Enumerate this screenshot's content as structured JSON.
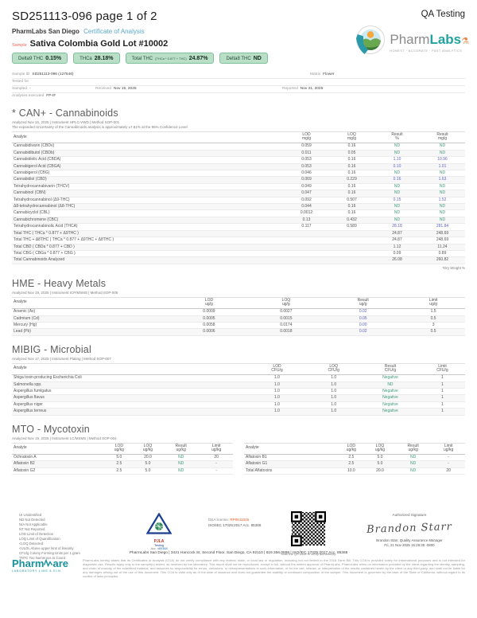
{
  "colors": {
    "accent_teal": "#58a9c9",
    "accent_orange": "#e8695a",
    "badge_bg": "#b9dfc7",
    "badge_border": "#7fc09c",
    "result_blue": "#5f63c8",
    "result_green": "#3f9b78"
  },
  "header": {
    "title": "SD251113-096 page 1 of 2",
    "right": "QA Testing"
  },
  "brand": {
    "lab_name": "PharmLabs San Diego",
    "doc_type": "Certificate of Analysis"
  },
  "sample": {
    "label": "Sample",
    "name": "Sativa Colombia Gold Lot #10002"
  },
  "badges": [
    {
      "label": "Delta9 THC",
      "value": "0.15%"
    },
    {
      "label": "THCa",
      "value": "28.18%"
    },
    {
      "label": "Total THC",
      "sub": "(THCa * 0.877 + THC)",
      "value": "24.87%"
    },
    {
      "label": "Delta8 THC",
      "value": "ND"
    }
  ],
  "logo": {
    "word1": "Pharm",
    "word2": "Labs",
    "flask": "⚗",
    "tagline": "HONEST · ACCURATE · FAST ANALYTICS"
  },
  "info": {
    "sample_id_label": "Sample ID",
    "sample_id": "SD251113-096 (127646)",
    "matrix_label": "Matrix",
    "matrix": "Flower",
    "tested_for_label": "Tested for",
    "sampled_label": "Sampled",
    "sampled": "-",
    "received_label": "Received",
    "received": "Nov 15, 2025",
    "reported_label": "Reported",
    "reported": "Nov 21, 2025",
    "analyses_label": "Analyses executed",
    "analyses": "FP-IF"
  },
  "sections": {
    "cannabinoids": {
      "title": "* CAN+ - Cannabinoids",
      "meta": "Analyzed Nov 15, 2025  |  Instrument HPLC-VWD  | Method SOP-001",
      "note": "The expanded Uncertainty of the Cannabinoids analysis is approximately ±7.81% at the 95% Confidence Level",
      "footnote": "*Dry Weight %"
    },
    "heavy_metals": {
      "title": "HME - Heavy Metals",
      "meta": "Analyzed Nov 19, 2025  |  Instrument ICP/MSMS  | Method SOP-005"
    },
    "microbial": {
      "title": "MIBIG - Microbial",
      "meta": "Analyzed Nov 17, 2025  |  Instrument Plating  | Method SOP-007"
    },
    "mycotoxin": {
      "title": "MTO - Mycotoxin",
      "meta": "Analyzed Nov 19, 2025  |  Instrument LC/MSMS  | Method SOP-004"
    }
  },
  "tables": {
    "cannabinoids": {
      "widths": [
        "60%",
        "10%",
        "10%",
        "10%",
        "10%"
      ],
      "blue": [
        3,
        4
      ],
      "headers": [
        {
          "l": "Analyte"
        },
        {
          "l": "LOD",
          "u": "mg/g"
        },
        {
          "l": "LOQ",
          "u": "mg/g"
        },
        {
          "l": "Result",
          "u": "%"
        },
        {
          "l": "Result",
          "u": "mg/g"
        }
      ],
      "rows": [
        {
          "c": [
            "Cannabidivarin (CBDv)",
            "0.059",
            "0.16",
            "ND",
            "ND"
          ]
        },
        {
          "c": [
            "Cannabidibutol (CBDb)",
            "0.011",
            "0.05",
            "ND",
            "ND"
          ]
        },
        {
          "c": [
            "Cannabidiolic Acid (CBDA)",
            "0.053",
            "0.16",
            "1.10",
            "10.96"
          ]
        },
        {
          "c": [
            "Cannabigerol Acid (CBGA)",
            "0.053",
            "0.16",
            "0.10",
            "1.01"
          ]
        },
        {
          "c": [
            "Cannabigerol (CBG)",
            "0.046",
            "0.16",
            "ND",
            "ND"
          ]
        },
        {
          "c": [
            "Cannabidiol (CBD)",
            "0.069",
            "0.229",
            "0.16",
            "1.63"
          ]
        },
        {
          "c": [
            "Tetrahydrocannabivarin (THCV)",
            "0.049",
            "0.16",
            "ND",
            "ND"
          ]
        },
        {
          "c": [
            "Cannabinol (CBN)",
            "0.047",
            "0.16",
            "ND",
            "ND"
          ]
        },
        {
          "c": [
            "Tetrahydrocannabinol (Δ9-THC)",
            "0.092",
            "0.507",
            "0.15",
            "1.52"
          ]
        },
        {
          "c": [
            "Δ8-tetrahydrocannabinol (Δ8-THC)",
            "0.044",
            "0.16",
            "ND",
            "ND"
          ]
        },
        {
          "c": [
            "Cannabicyclol (CBL)",
            "0.0012",
            "0.16",
            "ND",
            "ND"
          ]
        },
        {
          "c": [
            "Cannabichromene (CBC)",
            "0.13",
            "0.432",
            "ND",
            "ND"
          ]
        },
        {
          "c": [
            "Tetrahydrocannabinolic Acid (THCA)",
            "0.117",
            "0.589",
            "28.18",
            "281.84"
          ]
        },
        {
          "c": [
            "Total THC ( THCa * 0.877 + Δ9THC )",
            "",
            "",
            "24.87",
            "248.69"
          ],
          "plain": true,
          "sep": true
        },
        {
          "c": [
            "Total THC + Δ8THC ( THCa * 0.877 + Δ9THC + Δ8THC )",
            "",
            "",
            "24.87",
            "248.69"
          ],
          "plain": true
        },
        {
          "c": [
            "Total CBD ( CBDa * 0.877 + CBD )",
            "",
            "",
            "1.12",
            "11.24"
          ],
          "plain": true
        },
        {
          "c": [
            "Total CBG ( CBGa * 0.877 + CBG )",
            "",
            "",
            "0.09",
            "0.89"
          ],
          "plain": true
        },
        {
          "c": [
            "Total Cannabinoids Analyzed",
            "",
            "",
            "26.08",
            "260.82"
          ],
          "plain": true
        }
      ]
    },
    "heavy_metals": {
      "widths": [
        "35%",
        "17%",
        "17%",
        "17%",
        "14%"
      ],
      "blue": [
        3
      ],
      "headers": [
        {
          "l": "Analyte"
        },
        {
          "l": "LOD",
          "u": "ug/g"
        },
        {
          "l": "LOQ",
          "u": "ug/g"
        },
        {
          "l": "Result",
          "u": "ug/g"
        },
        {
          "l": "Limit",
          "u": "ug/g"
        }
      ],
      "rows": [
        {
          "c": [
            "Arsenic (As)",
            "0.0009",
            "0.0027",
            "0.02",
            "1.5"
          ]
        },
        {
          "c": [
            "Cadmium (Cd)",
            "0.0005",
            "0.0015",
            "0.05",
            "0.5"
          ]
        },
        {
          "c": [
            "Mercury (Hg)",
            "0.0058",
            "0.0174",
            "0.00",
            "3"
          ]
        },
        {
          "c": [
            "Lead (Pb)",
            "0.0006",
            "0.0018",
            "0.02",
            "0.5"
          ]
        }
      ]
    },
    "microbial": {
      "widths": [
        "52%",
        "13%",
        "12%",
        "13%",
        "10%"
      ],
      "blue": [],
      "headers": [
        {
          "l": "Analyte"
        },
        {
          "l": "LOD",
          "u": "CFU/g"
        },
        {
          "l": "LOQ",
          "u": "CFU/g"
        },
        {
          "l": "Result",
          "u": "CFU/g"
        },
        {
          "l": "Limit",
          "u": "CFU/g"
        }
      ],
      "rows": [
        {
          "c": [
            "Shiga toxin-producing Escherichia Coli",
            "1.0",
            "1.0",
            "Negative",
            "1"
          ]
        },
        {
          "c": [
            "Salmonella spp.",
            "1.0",
            "1.0",
            "ND",
            "1"
          ]
        },
        {
          "c": [
            "Aspergillus fumigatus",
            "1.0",
            "1.0",
            "Negative",
            "1"
          ]
        },
        {
          "c": [
            "Aspergillus flavus",
            "1.0",
            "1.0",
            "Negative",
            "1"
          ]
        },
        {
          "c": [
            "Aspergillus niger",
            "1.0",
            "1.0",
            "Negative",
            "1"
          ]
        },
        {
          "c": [
            "Aspergillus terreus",
            "1.0",
            "1.0",
            "Negative",
            "1"
          ]
        }
      ]
    },
    "mycotoxin_left": {
      "widths": [
        "42%",
        "13%",
        "13%",
        "17%",
        "15%"
      ],
      "blue": [],
      "headers": [
        {
          "l": "Analyte"
        },
        {
          "l": "LOD",
          "u": "ug/kg"
        },
        {
          "l": "LOQ",
          "u": "ug/kg"
        },
        {
          "l": "Result",
          "u": "ug/kg"
        },
        {
          "l": "Limit",
          "u": "ug/kg"
        }
      ],
      "rows": [
        {
          "c": [
            "Ochratoxin A",
            "5.0",
            "20.0",
            "ND",
            "20"
          ]
        },
        {
          "c": [
            "Aflatoxin B2",
            "2.5",
            "5.0",
            "ND",
            "-"
          ]
        },
        {
          "c": [
            "Aflatoxin G2",
            "2.5",
            "5.0",
            "ND",
            "-"
          ]
        }
      ]
    },
    "mycotoxin_right": {
      "widths": [
        "42%",
        "13%",
        "13%",
        "17%",
        "15%"
      ],
      "blue": [],
      "headers": [
        {
          "l": "Analyte"
        },
        {
          "l": "LOD",
          "u": "ug/kg"
        },
        {
          "l": "LOQ",
          "u": "ug/kg"
        },
        {
          "l": "Result",
          "u": "ug/kg"
        },
        {
          "l": "Limit",
          "u": "ug/kg"
        }
      ],
      "rows": [
        {
          "c": [
            "Aflatoxin B1",
            "2.5",
            "5.0",
            "ND",
            "-"
          ]
        },
        {
          "c": [
            "Aflatoxin G1",
            "2.5",
            "5.0",
            "ND",
            "-"
          ]
        },
        {
          "c": [
            "Total Aflatoxins",
            "10.0",
            "20.0",
            "ND",
            "20"
          ]
        }
      ]
    }
  },
  "footer": {
    "legend": [
      "UI Unidentified",
      "ND Not Detected",
      "N/A Not Applicable",
      "NT Not Reported",
      "LOD Limit of Detection",
      "LOQ Limit of Quantification",
      "<LOQ Detected",
      "<ULOL Above upper limit of linearity",
      "CFU/g Colony Forming Units per 1 gram",
      "TNTC Too Numerous to Count"
    ],
    "pjla": {
      "name": "PJLA",
      "sub": "Testing",
      "acc_label": "Acc. #",
      "acc_num": "85368"
    },
    "dea": {
      "label": "DEA license:",
      "value": "RP0611045"
    },
    "iso": "ISO/IEC 17025:2017 Acc. 85368",
    "qr_caption": "Scan the QR code to verify authenticity.",
    "signature": {
      "label": "Authorized Signature",
      "name": "Brandon Starr",
      "line1": "Brandon Starr, Quality Assurance Manager",
      "line2": "Fri, 21 Nov 2025 15:28:35 -0800"
    },
    "address": "PharmLabs San Diego | 3421 Hancock St, Second Floor, San Diego, CA 92110 | 619.356.0898 | ISO/IEC 17025:2017 Acc. 85368",
    "disclaimer": "PharmLabs hereby states that its Certificates of Analysis (COA) do not certify compliance with any federal, state, or local law or regulation, including but not limited to the 2018 Farm Bill. This COA is provided solely for informational purposes and is not intended for diagnostic use. Results apply only to the sample(s) tested, as received by the laboratory. This report shall not be reproduced, except in full, without the written approval of PharmLabs. PharmLabs relies on information provided by the client regarding the identity, sampling, and chain of custody of the submitted material, and assumes no responsibility for errors, omissions, or misrepresentations in such information, or for the use, misuse, or interpretation of the results contained herein by the client or any third party, and shall not be liable for any damages arising out of the use of this document. This COA is valid only as of the date of issuance and does not guarantee the stability or continued composition of the sample. This document is governed by the laws of the State of California, without regard to its conflict of laws principles.",
    "pharmware": {
      "word1": "Pharm",
      "word2": "are",
      "sub": "LABORATORY LIMS & ELN"
    }
  }
}
